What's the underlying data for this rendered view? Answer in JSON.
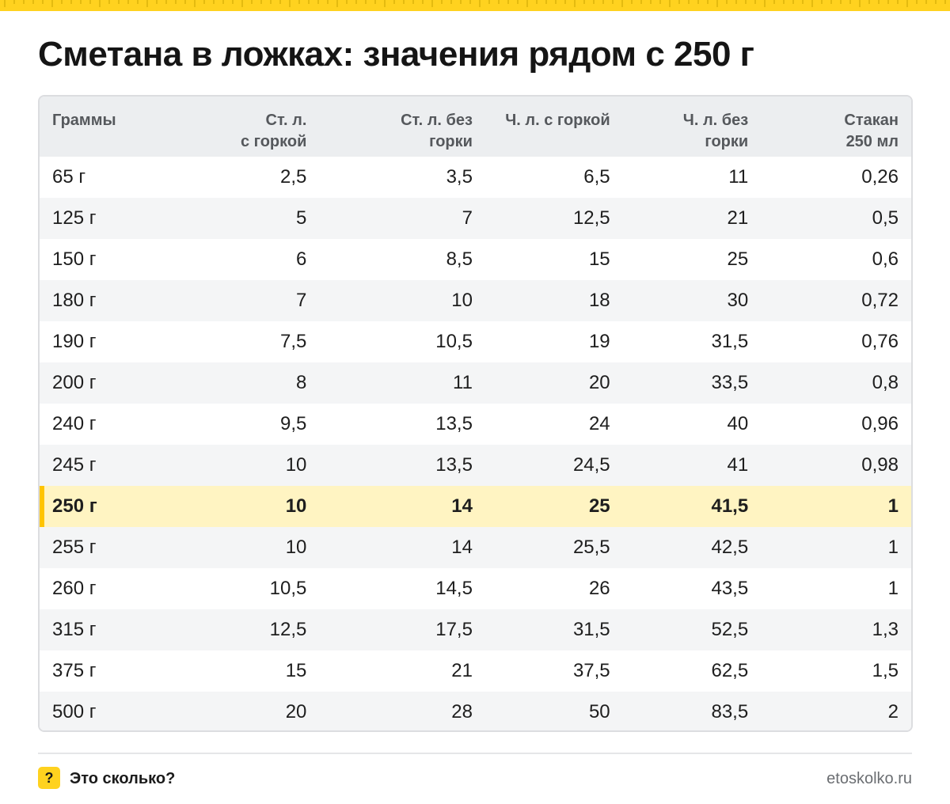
{
  "title": "Сметана в ложках: значения рядом с 250 г",
  "accent_color": "#ffd21f",
  "highlight_color": "#fff4c2",
  "table": {
    "headers": [
      [
        "Граммы"
      ],
      [
        "Ст. л.",
        "с горкой"
      ],
      [
        "Ст. л. без",
        "горки"
      ],
      [
        "Ч. л. с горкой"
      ],
      [
        "Ч. л. без",
        "горки"
      ],
      [
        "Стакан",
        "250 мл"
      ]
    ],
    "highlighted_row": "250 г",
    "rows": [
      [
        "65 г",
        "2,5",
        "3,5",
        "6,5",
        "11",
        "0,26"
      ],
      [
        "125 г",
        "5",
        "7",
        "12,5",
        "21",
        "0,5"
      ],
      [
        "150 г",
        "6",
        "8,5",
        "15",
        "25",
        "0,6"
      ],
      [
        "180 г",
        "7",
        "10",
        "18",
        "30",
        "0,72"
      ],
      [
        "190 г",
        "7,5",
        "10,5",
        "19",
        "31,5",
        "0,76"
      ],
      [
        "200 г",
        "8",
        "11",
        "20",
        "33,5",
        "0,8"
      ],
      [
        "240 г",
        "9,5",
        "13,5",
        "24",
        "40",
        "0,96"
      ],
      [
        "245 г",
        "10",
        "13,5",
        "24,5",
        "41",
        "0,98"
      ],
      [
        "250 г",
        "10",
        "14",
        "25",
        "41,5",
        "1"
      ],
      [
        "255 г",
        "10",
        "14",
        "25,5",
        "42,5",
        "1"
      ],
      [
        "260 г",
        "10,5",
        "14,5",
        "26",
        "43,5",
        "1"
      ],
      [
        "315 г",
        "12,5",
        "17,5",
        "31,5",
        "52,5",
        "1,3"
      ],
      [
        "375 г",
        "15",
        "21",
        "37,5",
        "62,5",
        "1,5"
      ],
      [
        "500 г",
        "20",
        "28",
        "50",
        "83,5",
        "2"
      ]
    ]
  },
  "footer": {
    "badge": "?",
    "brand": "Это сколько?",
    "site": "etoskolko.ru"
  }
}
